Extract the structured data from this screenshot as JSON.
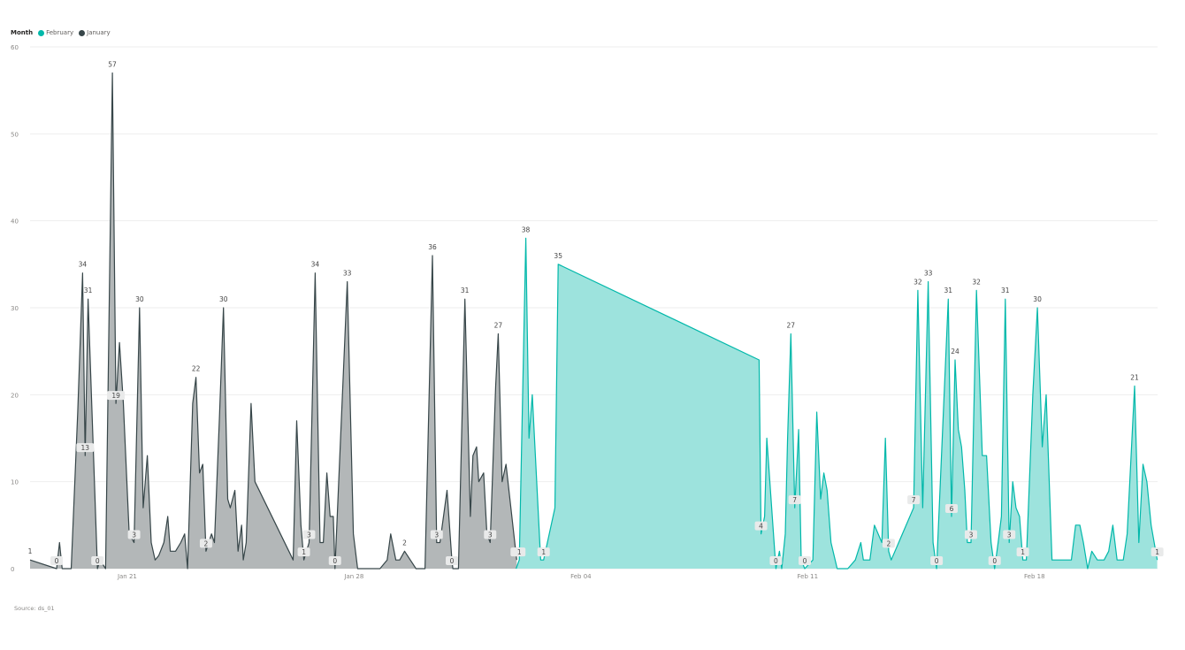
{
  "legend": {
    "title": "Month",
    "items": [
      {
        "label": "February",
        "color": "#01B8AA"
      },
      {
        "label": "January",
        "color": "#374649"
      }
    ]
  },
  "source": "Source: ds_01",
  "chart_data": {
    "type": "area",
    "x_unit": "day",
    "x_start": "Jan 18",
    "ylim": [
      0,
      60
    ],
    "y_ticks": [
      0,
      10,
      20,
      30,
      40,
      50,
      60
    ],
    "x_ticks": [
      {
        "label": "Jan 21",
        "x": 3
      },
      {
        "label": "Jan 28",
        "x": 10
      },
      {
        "label": "Feb 04",
        "x": 17
      },
      {
        "label": "Feb 11",
        "x": 24
      },
      {
        "label": "Feb 18",
        "x": 31
      }
    ],
    "grid": true,
    "legend_position": "top-left",
    "series": [
      {
        "name": "January",
        "color": "#374649",
        "fill": "#B3B7B8",
        "points": [
          [
            0.0,
            1
          ],
          [
            0.82,
            0
          ],
          [
            0.91,
            3
          ],
          [
            0.99,
            0
          ],
          [
            1.27,
            0
          ],
          [
            1.47,
            18
          ],
          [
            1.62,
            34
          ],
          [
            1.7,
            13
          ],
          [
            1.79,
            31
          ],
          [
            2.08,
            0
          ],
          [
            2.16,
            1
          ],
          [
            2.33,
            0
          ],
          [
            2.54,
            57
          ],
          [
            2.65,
            19
          ],
          [
            2.76,
            26
          ],
          [
            2.88,
            19
          ],
          [
            3.06,
            4
          ],
          [
            3.21,
            3
          ],
          [
            3.38,
            30
          ],
          [
            3.49,
            7
          ],
          [
            3.62,
            13
          ],
          [
            3.74,
            3
          ],
          [
            3.86,
            1
          ],
          [
            3.97,
            1.5
          ],
          [
            4.13,
            3
          ],
          [
            4.25,
            6
          ],
          [
            4.33,
            2
          ],
          [
            4.49,
            2
          ],
          [
            4.65,
            3
          ],
          [
            4.77,
            4
          ],
          [
            4.86,
            0
          ],
          [
            5.02,
            19
          ],
          [
            5.12,
            22
          ],
          [
            5.23,
            11
          ],
          [
            5.33,
            12
          ],
          [
            5.43,
            2
          ],
          [
            5.6,
            4
          ],
          [
            5.69,
            3
          ],
          [
            5.84,
            17
          ],
          [
            5.97,
            30
          ],
          [
            6.1,
            8
          ],
          [
            6.18,
            7
          ],
          [
            6.32,
            9
          ],
          [
            6.42,
            2
          ],
          [
            6.53,
            5
          ],
          [
            6.58,
            1
          ],
          [
            6.67,
            3
          ],
          [
            6.82,
            19
          ],
          [
            6.94,
            10
          ],
          [
            8.12,
            1
          ],
          [
            8.23,
            17
          ],
          [
            8.36,
            5
          ],
          [
            8.45,
            1
          ],
          [
            8.61,
            3
          ],
          [
            8.8,
            34
          ],
          [
            8.95,
            3
          ],
          [
            9.05,
            3
          ],
          [
            9.16,
            11
          ],
          [
            9.26,
            6
          ],
          [
            9.36,
            6
          ],
          [
            9.41,
            0
          ],
          [
            9.79,
            33
          ],
          [
            9.98,
            4
          ],
          [
            10.11,
            0
          ],
          [
            10.8,
            0
          ],
          [
            11.02,
            1
          ],
          [
            11.13,
            4
          ],
          [
            11.29,
            1
          ],
          [
            11.41,
            1
          ],
          [
            11.56,
            2
          ],
          [
            11.91,
            0
          ],
          [
            12.19,
            0
          ],
          [
            12.42,
            36
          ],
          [
            12.55,
            3
          ],
          [
            12.65,
            3
          ],
          [
            12.87,
            9
          ],
          [
            13.02,
            1
          ],
          [
            13.05,
            0
          ],
          [
            13.22,
            0
          ],
          [
            13.42,
            31
          ],
          [
            13.59,
            6
          ],
          [
            13.67,
            13
          ],
          [
            13.78,
            14
          ],
          [
            13.85,
            10
          ],
          [
            14.0,
            11
          ],
          [
            14.1,
            4
          ],
          [
            14.2,
            3
          ],
          [
            14.37,
            21
          ],
          [
            14.45,
            27
          ],
          [
            14.57,
            10
          ],
          [
            14.69,
            12
          ],
          [
            15.02,
            1
          ]
        ]
      },
      {
        "name": "February",
        "color": "#01B8AA",
        "fill": "#9DE3DD",
        "points": [
          [
            15.0,
            0
          ],
          [
            15.1,
            1
          ],
          [
            15.3,
            38
          ],
          [
            15.4,
            15
          ],
          [
            15.5,
            20
          ],
          [
            15.76,
            1
          ],
          [
            15.85,
            1
          ],
          [
            16.2,
            7
          ],
          [
            16.3,
            35
          ],
          [
            22.5,
            24
          ],
          [
            22.56,
            4
          ],
          [
            22.67,
            6
          ],
          [
            22.74,
            15
          ],
          [
            23.02,
            0
          ],
          [
            23.13,
            2
          ],
          [
            23.2,
            0
          ],
          [
            23.31,
            4
          ],
          [
            23.38,
            15
          ],
          [
            23.48,
            27
          ],
          [
            23.6,
            7
          ],
          [
            23.72,
            16
          ],
          [
            23.8,
            1
          ],
          [
            23.91,
            0
          ],
          [
            24.16,
            1
          ],
          [
            24.28,
            18
          ],
          [
            24.4,
            8
          ],
          [
            24.5,
            11
          ],
          [
            24.6,
            9
          ],
          [
            24.72,
            3
          ],
          [
            24.91,
            0
          ],
          [
            25.24,
            0
          ],
          [
            25.47,
            1
          ],
          [
            25.64,
            3
          ],
          [
            25.72,
            1
          ],
          [
            25.92,
            1
          ],
          [
            26.06,
            5
          ],
          [
            26.29,
            3
          ],
          [
            26.4,
            15
          ],
          [
            26.5,
            2
          ],
          [
            26.58,
            1
          ],
          [
            27.27,
            7
          ],
          [
            27.4,
            32
          ],
          [
            27.55,
            7
          ],
          [
            27.72,
            33
          ],
          [
            27.87,
            3
          ],
          [
            27.98,
            0
          ],
          [
            28.34,
            31
          ],
          [
            28.44,
            6
          ],
          [
            28.55,
            24
          ],
          [
            28.65,
            16
          ],
          [
            28.75,
            14
          ],
          [
            28.85,
            9
          ],
          [
            28.93,
            3
          ],
          [
            29.04,
            3
          ],
          [
            29.21,
            32
          ],
          [
            29.39,
            13
          ],
          [
            29.52,
            13
          ],
          [
            29.66,
            3
          ],
          [
            29.77,
            0
          ],
          [
            29.88,
            3
          ],
          [
            29.98,
            6
          ],
          [
            30.1,
            31
          ],
          [
            30.22,
            3
          ],
          [
            30.33,
            10
          ],
          [
            30.43,
            7
          ],
          [
            30.54,
            6
          ],
          [
            30.64,
            1
          ],
          [
            30.75,
            1
          ],
          [
            30.95,
            20
          ],
          [
            31.09,
            30
          ],
          [
            31.24,
            14
          ],
          [
            31.36,
            20
          ],
          [
            31.54,
            1
          ],
          [
            31.66,
            1
          ],
          [
            31.77,
            1
          ],
          [
            31.86,
            1
          ],
          [
            32.14,
            1
          ],
          [
            32.27,
            5
          ],
          [
            32.4,
            5
          ],
          [
            32.51,
            3
          ],
          [
            32.64,
            0
          ],
          [
            32.77,
            2
          ],
          [
            32.94,
            1
          ],
          [
            33.15,
            1
          ],
          [
            33.29,
            2
          ],
          [
            33.42,
            5
          ],
          [
            33.55,
            1
          ],
          [
            33.74,
            1
          ],
          [
            33.86,
            4
          ],
          [
            34.09,
            21
          ],
          [
            34.22,
            3
          ],
          [
            34.35,
            12
          ],
          [
            34.47,
            10
          ],
          [
            34.6,
            5
          ],
          [
            34.79,
            1
          ]
        ]
      }
    ],
    "data_labels": [
      {
        "series": "January",
        "x": 0.0,
        "y": 1,
        "text": "1",
        "style": "plain"
      },
      {
        "series": "January",
        "x": 0.82,
        "y": 0,
        "text": "0",
        "style": "box"
      },
      {
        "series": "January",
        "x": 1.62,
        "y": 34,
        "text": "34",
        "style": "plain"
      },
      {
        "series": "January",
        "x": 1.7,
        "y": 13,
        "text": "13",
        "style": "box"
      },
      {
        "series": "January",
        "x": 1.79,
        "y": 31,
        "text": "31",
        "style": "plain"
      },
      {
        "series": "January",
        "x": 2.08,
        "y": 0,
        "text": "0",
        "style": "box"
      },
      {
        "series": "January",
        "x": 2.54,
        "y": 57,
        "text": "57",
        "style": "plain"
      },
      {
        "series": "January",
        "x": 2.65,
        "y": 19,
        "text": "19",
        "style": "box"
      },
      {
        "series": "January",
        "x": 3.21,
        "y": 3,
        "text": "3",
        "style": "box"
      },
      {
        "series": "January",
        "x": 3.38,
        "y": 30,
        "text": "30",
        "style": "plain"
      },
      {
        "series": "January",
        "x": 5.12,
        "y": 22,
        "text": "22",
        "style": "plain"
      },
      {
        "series": "January",
        "x": 5.43,
        "y": 2,
        "text": "2",
        "style": "box"
      },
      {
        "series": "January",
        "x": 5.97,
        "y": 30,
        "text": "30",
        "style": "plain"
      },
      {
        "series": "January",
        "x": 8.45,
        "y": 1,
        "text": "1",
        "style": "box"
      },
      {
        "series": "January",
        "x": 8.61,
        "y": 3,
        "text": "3",
        "style": "box"
      },
      {
        "series": "January",
        "x": 8.8,
        "y": 34,
        "text": "34",
        "style": "plain"
      },
      {
        "series": "January",
        "x": 9.41,
        "y": 0,
        "text": "0",
        "style": "box"
      },
      {
        "series": "January",
        "x": 9.79,
        "y": 33,
        "text": "33",
        "style": "plain"
      },
      {
        "series": "January",
        "x": 11.56,
        "y": 2,
        "text": "2",
        "style": "plain"
      },
      {
        "series": "January",
        "x": 12.42,
        "y": 36,
        "text": "36",
        "style": "plain"
      },
      {
        "series": "January",
        "x": 12.55,
        "y": 3,
        "text": "3",
        "style": "box"
      },
      {
        "series": "January",
        "x": 13.02,
        "y": 0,
        "text": "0",
        "style": "box"
      },
      {
        "series": "January",
        "x": 13.42,
        "y": 31,
        "text": "31",
        "style": "plain"
      },
      {
        "series": "January",
        "x": 14.2,
        "y": 3,
        "text": "3",
        "style": "box"
      },
      {
        "series": "January",
        "x": 14.45,
        "y": 27,
        "text": "27",
        "style": "plain"
      },
      {
        "series": "January",
        "x": 15.02,
        "y": 1,
        "text": "1",
        "style": "box"
      },
      {
        "series": "February",
        "x": 15.1,
        "y": 1,
        "text": "1",
        "style": "box"
      },
      {
        "series": "February",
        "x": 15.3,
        "y": 38,
        "text": "38",
        "style": "plain"
      },
      {
        "series": "February",
        "x": 15.85,
        "y": 1,
        "text": "1",
        "style": "box"
      },
      {
        "series": "February",
        "x": 16.3,
        "y": 35,
        "text": "35",
        "style": "plain"
      },
      {
        "series": "February",
        "x": 22.56,
        "y": 4,
        "text": "4",
        "style": "box"
      },
      {
        "series": "February",
        "x": 23.02,
        "y": 0,
        "text": "0",
        "style": "box"
      },
      {
        "series": "February",
        "x": 23.48,
        "y": 27,
        "text": "27",
        "style": "plain"
      },
      {
        "series": "February",
        "x": 23.6,
        "y": 7,
        "text": "7",
        "style": "box"
      },
      {
        "series": "February",
        "x": 23.91,
        "y": 0,
        "text": "0",
        "style": "box"
      },
      {
        "series": "February",
        "x": 26.5,
        "y": 2,
        "text": "2",
        "style": "box"
      },
      {
        "series": "February",
        "x": 27.27,
        "y": 7,
        "text": "7",
        "style": "box"
      },
      {
        "series": "February",
        "x": 27.4,
        "y": 32,
        "text": "32",
        "style": "plain"
      },
      {
        "series": "February",
        "x": 27.72,
        "y": 33,
        "text": "33",
        "style": "plain"
      },
      {
        "series": "February",
        "x": 27.98,
        "y": 0,
        "text": "0",
        "style": "box"
      },
      {
        "series": "February",
        "x": 28.34,
        "y": 31,
        "text": "31",
        "style": "plain"
      },
      {
        "series": "February",
        "x": 28.44,
        "y": 6,
        "text": "6",
        "style": "box"
      },
      {
        "series": "February",
        "x": 28.55,
        "y": 24,
        "text": "24",
        "style": "plain"
      },
      {
        "series": "February",
        "x": 29.04,
        "y": 3,
        "text": "3",
        "style": "box"
      },
      {
        "series": "February",
        "x": 29.21,
        "y": 32,
        "text": "32",
        "style": "plain"
      },
      {
        "series": "February",
        "x": 29.77,
        "y": 0,
        "text": "0",
        "style": "box"
      },
      {
        "series": "February",
        "x": 30.1,
        "y": 31,
        "text": "31",
        "style": "plain"
      },
      {
        "series": "February",
        "x": 30.22,
        "y": 3,
        "text": "3",
        "style": "box"
      },
      {
        "series": "February",
        "x": 30.64,
        "y": 1,
        "text": "1",
        "style": "box"
      },
      {
        "series": "February",
        "x": 31.09,
        "y": 30,
        "text": "30",
        "style": "plain"
      },
      {
        "series": "February",
        "x": 34.09,
        "y": 21,
        "text": "21",
        "style": "plain"
      },
      {
        "series": "February",
        "x": 34.79,
        "y": 1,
        "text": "1",
        "style": "box"
      }
    ]
  }
}
